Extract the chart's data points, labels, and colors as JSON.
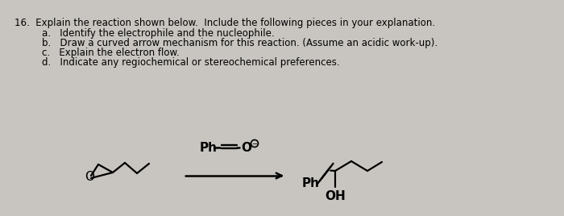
{
  "background_color": "#c8c5c0",
  "title_text": "16.  Explain the reaction shown below.  Include the following pieces in your explanation.",
  "items": [
    "a.   Identify the electrophile and the nucleophile.",
    "b.   Draw a curved arrow mechanism for this reaction. (Assume an acidic work-up).",
    "c.   Explain the electron flow.",
    "d.   Indicate any regiochemical or stereochemical preferences."
  ],
  "title_fontsize": 8.5,
  "item_fontsize": 8.5,
  "chem_fontsize": 10,
  "text_color": "black"
}
